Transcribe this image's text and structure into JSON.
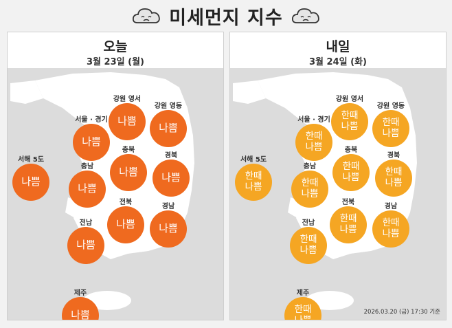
{
  "title": "미세먼지 지수",
  "icons": {
    "left": "sad-cloud-icon",
    "right": "sad-cloud-icon"
  },
  "colors": {
    "bad": "#ef6a1f",
    "mixed": "#f5a623",
    "map": "#ffffff",
    "background": "#dcdcdc"
  },
  "panels": [
    {
      "title": "오늘",
      "date": "3월 23일 (월)",
      "regions": [
        {
          "name": "강원 영서",
          "status": "나쁨"
        },
        {
          "name": "강원 영동",
          "status": "나쁨"
        },
        {
          "name": "서울 · 경기",
          "status": "나쁨"
        },
        {
          "name": "충북",
          "status": "나쁨"
        },
        {
          "name": "서해 5도",
          "status": "나쁨"
        },
        {
          "name": "충남",
          "status": "나쁨"
        },
        {
          "name": "경북",
          "status": "나쁨"
        },
        {
          "name": "전북",
          "status": "나쁨"
        },
        {
          "name": "경남",
          "status": "나쁨"
        },
        {
          "name": "전남",
          "status": "나쁨"
        },
        {
          "name": "제주",
          "status": "나쁨"
        }
      ],
      "footer": ""
    },
    {
      "title": "내일",
      "date": "3월 24일 (화)",
      "regions": [
        {
          "name": "강원 영서",
          "status": "한때 나쁨"
        },
        {
          "name": "강원 영동",
          "status": "한때 나쁨"
        },
        {
          "name": "서울 · 경기",
          "status": "한때 나쁨"
        },
        {
          "name": "충북",
          "status": "한때 나쁨"
        },
        {
          "name": "서해 5도",
          "status": "한때 나쁨"
        },
        {
          "name": "충남",
          "status": "한때 나쁨"
        },
        {
          "name": "경북",
          "status": "한때 나쁨"
        },
        {
          "name": "전북",
          "status": "한때 나쁨"
        },
        {
          "name": "경남",
          "status": "한때 나쁨"
        },
        {
          "name": "전남",
          "status": "한때 나쁨"
        },
        {
          "name": "제주",
          "status": "한때 나쁨"
        }
      ],
      "footer": "2026.03.20 (금) 17:30 기준"
    }
  ]
}
